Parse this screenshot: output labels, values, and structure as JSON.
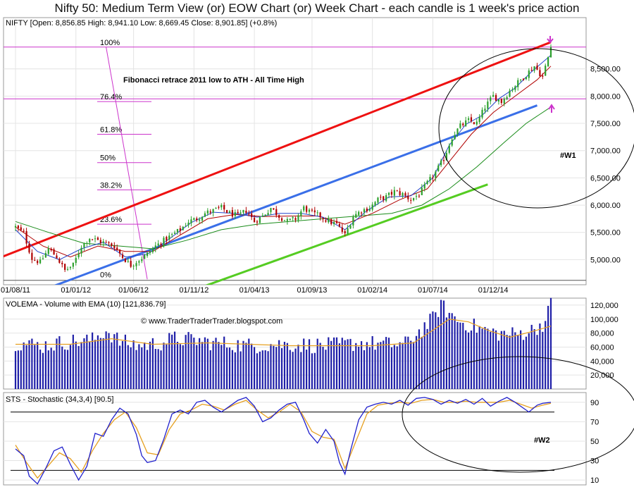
{
  "title": "Nifty 50: Medium Term View (or) EOW Chart (or) Week Chart - each candle is 1 week's price action",
  "watermark": "© www.TraderTraderTrader.blogspot.com",
  "colors": {
    "up": "#2ca02c",
    "down": "#b00000",
    "ema_fast": "#2244cc",
    "ema_mid": "#b00000",
    "ema_slow": "#1a8c1a",
    "channel_top": "#ee1111",
    "channel_mid": "#3a6fe8",
    "channel_bottom": "#55cc22",
    "fib": "#cc33cc",
    "volume": "#1f1fa8",
    "volume_ema": "#e6a020",
    "stoch_k": "#1f1fcc",
    "stoch_d": "#e6a020",
    "annotation_arrow": "#cc33cc"
  },
  "chart_data": [
    {
      "type": "candlestick",
      "label": "NIFTY [Open: 8,856.85  High: 8,941.10  Low: 8,669.45  Close: 8,901.85] (+0.8%)",
      "x_tick_labels": [
        "01/08/11",
        "01/01/12",
        "01/06/12",
        "01/11/12",
        "01/04/13",
        "01/09/13",
        "01/02/14",
        "01/07/14",
        "01/12/14"
      ],
      "y_tick_labels": [
        "5,000.00",
        "5,500.00",
        "6,000.00",
        "6,500.00",
        "7,000.00",
        "7,500.00",
        "8,000.00",
        "8,500.00"
      ],
      "y_ticks": [
        5000,
        5500,
        6000,
        6500,
        7000,
        7500,
        8000,
        8500
      ],
      "ylim": [
        4540,
        9440
      ],
      "x_weeks": 196,
      "close_series": [
        [
          0,
          5600
        ],
        [
          3,
          5480
        ],
        [
          6,
          5020
        ],
        [
          9,
          4950
        ],
        [
          12,
          5200
        ],
        [
          15,
          5050
        ],
        [
          18,
          4800
        ],
        [
          21,
          4900
        ],
        [
          24,
          5250
        ],
        [
          27,
          5400
        ],
        [
          30,
          5350
        ],
        [
          33,
          5300
        ],
        [
          36,
          5250
        ],
        [
          39,
          5050
        ],
        [
          42,
          4900
        ],
        [
          45,
          5000
        ],
        [
          48,
          5100
        ],
        [
          51,
          5250
        ],
        [
          54,
          5350
        ],
        [
          57,
          5450
        ],
        [
          60,
          5550
        ],
        [
          63,
          5700
        ],
        [
          66,
          5750
        ],
        [
          69,
          5850
        ],
        [
          72,
          5900
        ],
        [
          75,
          5950
        ],
        [
          78,
          5850
        ],
        [
          81,
          5800
        ],
        [
          84,
          5900
        ],
        [
          87,
          5700
        ],
        [
          90,
          5800
        ],
        [
          93,
          5950
        ],
        [
          96,
          5800
        ],
        [
          99,
          5700
        ],
        [
          102,
          5750
        ],
        [
          105,
          5950
        ],
        [
          108,
          5850
        ],
        [
          111,
          5800
        ],
        [
          114,
          5700
        ],
        [
          117,
          5650
        ],
        [
          120,
          5450
        ],
        [
          123,
          5800
        ],
        [
          126,
          5900
        ],
        [
          129,
          5950
        ],
        [
          132,
          6100
        ],
        [
          135,
          6150
        ],
        [
          138,
          6250
        ],
        [
          141,
          6200
        ],
        [
          144,
          6100
        ],
        [
          147,
          6200
        ],
        [
          150,
          6400
        ],
        [
          153,
          6600
        ],
        [
          156,
          6850
        ],
        [
          159,
          7250
        ],
        [
          162,
          7450
        ],
        [
          165,
          7550
        ],
        [
          168,
          7500
        ],
        [
          171,
          7800
        ],
        [
          174,
          8000
        ],
        [
          177,
          7900
        ],
        [
          180,
          8100
        ],
        [
          183,
          8250
        ],
        [
          186,
          8400
        ],
        [
          189,
          8550
        ],
        [
          192,
          8350
        ],
        [
          195,
          8900
        ]
      ],
      "ema_fast": [
        [
          0,
          5550
        ],
        [
          8,
          5150
        ],
        [
          16,
          5000
        ],
        [
          24,
          5200
        ],
        [
          32,
          5320
        ],
        [
          40,
          5050
        ],
        [
          48,
          5100
        ],
        [
          56,
          5380
        ],
        [
          64,
          5680
        ],
        [
          72,
          5870
        ],
        [
          80,
          5850
        ],
        [
          88,
          5780
        ],
        [
          96,
          5850
        ],
        [
          104,
          5850
        ],
        [
          112,
          5780
        ],
        [
          120,
          5550
        ],
        [
          128,
          5900
        ],
        [
          136,
          6150
        ],
        [
          144,
          6170
        ],
        [
          152,
          6500
        ],
        [
          158,
          7100
        ],
        [
          164,
          7480
        ],
        [
          170,
          7650
        ],
        [
          176,
          7950
        ],
        [
          182,
          8150
        ],
        [
          188,
          8450
        ],
        [
          195,
          8750
        ]
      ],
      "ema_mid": [
        [
          0,
          5600
        ],
        [
          10,
          5250
        ],
        [
          20,
          5050
        ],
        [
          30,
          5250
        ],
        [
          40,
          5150
        ],
        [
          50,
          5150
        ],
        [
          60,
          5450
        ],
        [
          70,
          5750
        ],
        [
          80,
          5830
        ],
        [
          90,
          5790
        ],
        [
          100,
          5800
        ],
        [
          110,
          5800
        ],
        [
          120,
          5650
        ],
        [
          130,
          5850
        ],
        [
          140,
          6100
        ],
        [
          150,
          6300
        ],
        [
          158,
          6800
        ],
        [
          166,
          7300
        ],
        [
          174,
          7700
        ],
        [
          182,
          8000
        ],
        [
          190,
          8300
        ],
        [
          195,
          8550
        ]
      ],
      "ema_slow": [
        [
          0,
          5700
        ],
        [
          12,
          5500
        ],
        [
          25,
          5300
        ],
        [
          38,
          5250
        ],
        [
          50,
          5200
        ],
        [
          62,
          5350
        ],
        [
          75,
          5550
        ],
        [
          88,
          5650
        ],
        [
          100,
          5700
        ],
        [
          112,
          5750
        ],
        [
          125,
          5800
        ],
        [
          137,
          5850
        ],
        [
          148,
          6000
        ],
        [
          158,
          6300
        ],
        [
          168,
          6700
        ],
        [
          178,
          7150
        ],
        [
          186,
          7500
        ],
        [
          195,
          7800
        ]
      ],
      "trendlines": [
        {
          "name": "channel-top",
          "from": [
            -5,
            5050
          ],
          "to": [
            195,
            8990
          ]
        },
        {
          "name": "channel-mid",
          "from": [
            13,
            4500
          ],
          "to": [
            190,
            7830
          ]
        },
        {
          "name": "channel-bottom",
          "from": [
            68,
            4500
          ],
          "to": [
            172,
            6380
          ]
        }
      ],
      "fibonacci": {
        "caption": "Fibonacci retrace 2011 low to ATH - All Time High",
        "levels": [
          {
            "label": "100%",
            "value": 8900
          },
          {
            "label": "76.4%",
            "value": 7900
          },
          {
            "label": "61.8%",
            "value": 7300
          },
          {
            "label": "50%",
            "value": 6780
          },
          {
            "label": "38.2%",
            "value": 6280
          },
          {
            "label": "23.6%",
            "value": 5650
          },
          {
            "label": "0%",
            "value": 4640
          }
        ],
        "diagonal": {
          "from": [
            33,
            8900
          ],
          "to": [
            48,
            4640
          ]
        }
      },
      "horizontal_lines": [
        8900,
        7950,
        4620
      ],
      "annotation": "#W1"
    },
    {
      "type": "bar",
      "label": "VOLEMA - Volume with EMA (10) [121,836.79]",
      "y_tick_labels": [
        "20,000",
        "40,000",
        "60,000",
        "80,000",
        "100,000",
        "120,000"
      ],
      "y_ticks": [
        20000,
        40000,
        60000,
        80000,
        100000,
        120000
      ],
      "ylim": [
        0,
        130000
      ],
      "volume_profile": [
        [
          0,
          66000
        ],
        [
          10,
          62000
        ],
        [
          20,
          68000
        ],
        [
          28,
          70000
        ],
        [
          33,
          84000
        ],
        [
          38,
          68000
        ],
        [
          45,
          62000
        ],
        [
          52,
          65000
        ],
        [
          58,
          72000
        ],
        [
          65,
          70000
        ],
        [
          75,
          65000
        ],
        [
          85,
          62000
        ],
        [
          95,
          64000
        ],
        [
          105,
          63000
        ],
        [
          115,
          62000
        ],
        [
          125,
          66000
        ],
        [
          135,
          64000
        ],
        [
          142,
          64000
        ],
        [
          147,
          82000
        ],
        [
          152,
          100000
        ],
        [
          155,
          120000
        ],
        [
          158,
          108000
        ],
        [
          162,
          96000
        ],
        [
          168,
          88000
        ],
        [
          175,
          80000
        ],
        [
          182,
          78000
        ],
        [
          188,
          84000
        ],
        [
          193,
          96000
        ],
        [
          195,
          122000
        ]
      ],
      "ema_profile": [
        [
          0,
          64000
        ],
        [
          20,
          64000
        ],
        [
          35,
          72000
        ],
        [
          50,
          64000
        ],
        [
          70,
          66000
        ],
        [
          100,
          62000
        ],
        [
          130,
          62000
        ],
        [
          145,
          66000
        ],
        [
          152,
          84000
        ],
        [
          158,
          100000
        ],
        [
          165,
          96000
        ],
        [
          172,
          84000
        ],
        [
          180,
          74000
        ],
        [
          188,
          82000
        ],
        [
          195,
          90000
        ]
      ]
    },
    {
      "type": "line",
      "label": "STS - Stochastic (34,3,4) [90.5]",
      "y_tick_labels": [
        "10",
        "30",
        "50",
        "70",
        "90"
      ],
      "y_ticks": [
        10,
        30,
        50,
        70,
        90
      ],
      "ylim": [
        5,
        100
      ],
      "k_line": [
        [
          0,
          42
        ],
        [
          3,
          35
        ],
        [
          5,
          14
        ],
        [
          8,
          6
        ],
        [
          11,
          22
        ],
        [
          14,
          40
        ],
        [
          17,
          44
        ],
        [
          20,
          26
        ],
        [
          23,
          10
        ],
        [
          26,
          24
        ],
        [
          29,
          58
        ],
        [
          32,
          55
        ],
        [
          35,
          72
        ],
        [
          38,
          84
        ],
        [
          41,
          78
        ],
        [
          44,
          57
        ],
        [
          46,
          35
        ],
        [
          48,
          28
        ],
        [
          51,
          30
        ],
        [
          54,
          52
        ],
        [
          57,
          78
        ],
        [
          60,
          82
        ],
        [
          63,
          78
        ],
        [
          66,
          90
        ],
        [
          69,
          92
        ],
        [
          72,
          85
        ],
        [
          75,
          80
        ],
        [
          78,
          86
        ],
        [
          81,
          92
        ],
        [
          84,
          95
        ],
        [
          87,
          86
        ],
        [
          90,
          70
        ],
        [
          93,
          74
        ],
        [
          96,
          82
        ],
        [
          99,
          88
        ],
        [
          102,
          90
        ],
        [
          105,
          72
        ],
        [
          107,
          58
        ],
        [
          110,
          48
        ],
        [
          113,
          62
        ],
        [
          116,
          50
        ],
        [
          118,
          28
        ],
        [
          120,
          16
        ],
        [
          122,
          40
        ],
        [
          125,
          72
        ],
        [
          128,
          85
        ],
        [
          131,
          88
        ],
        [
          134,
          90
        ],
        [
          137,
          88
        ],
        [
          140,
          92
        ],
        [
          143,
          87
        ],
        [
          146,
          94
        ],
        [
          149,
          95
        ],
        [
          152,
          93
        ],
        [
          155,
          88
        ],
        [
          158,
          92
        ],
        [
          161,
          89
        ],
        [
          164,
          93
        ],
        [
          167,
          88
        ],
        [
          170,
          94
        ],
        [
          173,
          86
        ],
        [
          176,
          91
        ],
        [
          179,
          95
        ],
        [
          182,
          90
        ],
        [
          185,
          84
        ],
        [
          187,
          80
        ],
        [
          190,
          87
        ],
        [
          192,
          89
        ],
        [
          195,
          90
        ]
      ],
      "d_line": [
        [
          0,
          46
        ],
        [
          4,
          28
        ],
        [
          8,
          12
        ],
        [
          12,
          25
        ],
        [
          16,
          38
        ],
        [
          20,
          32
        ],
        [
          24,
          18
        ],
        [
          28,
          40
        ],
        [
          32,
          58
        ],
        [
          36,
          72
        ],
        [
          40,
          80
        ],
        [
          44,
          64
        ],
        [
          48,
          38
        ],
        [
          52,
          36
        ],
        [
          56,
          62
        ],
        [
          60,
          78
        ],
        [
          64,
          82
        ],
        [
          68,
          88
        ],
        [
          72,
          86
        ],
        [
          76,
          82
        ],
        [
          80,
          88
        ],
        [
          84,
          92
        ],
        [
          88,
          82
        ],
        [
          92,
          74
        ],
        [
          96,
          80
        ],
        [
          100,
          88
        ],
        [
          104,
          80
        ],
        [
          108,
          60
        ],
        [
          112,
          54
        ],
        [
          116,
          52
        ],
        [
          120,
          22
        ],
        [
          124,
          50
        ],
        [
          128,
          78
        ],
        [
          132,
          87
        ],
        [
          136,
          89
        ],
        [
          140,
          90
        ],
        [
          144,
          89
        ],
        [
          148,
          92
        ],
        [
          152,
          93
        ],
        [
          156,
          90
        ],
        [
          160,
          90
        ],
        [
          164,
          91
        ],
        [
          168,
          90
        ],
        [
          172,
          90
        ],
        [
          176,
          90
        ],
        [
          180,
          92
        ],
        [
          184,
          88
        ],
        [
          188,
          84
        ],
        [
          192,
          87
        ],
        [
          195,
          89
        ]
      ],
      "ref_lines": [
        80,
        20
      ],
      "annotation": "#W2"
    }
  ]
}
